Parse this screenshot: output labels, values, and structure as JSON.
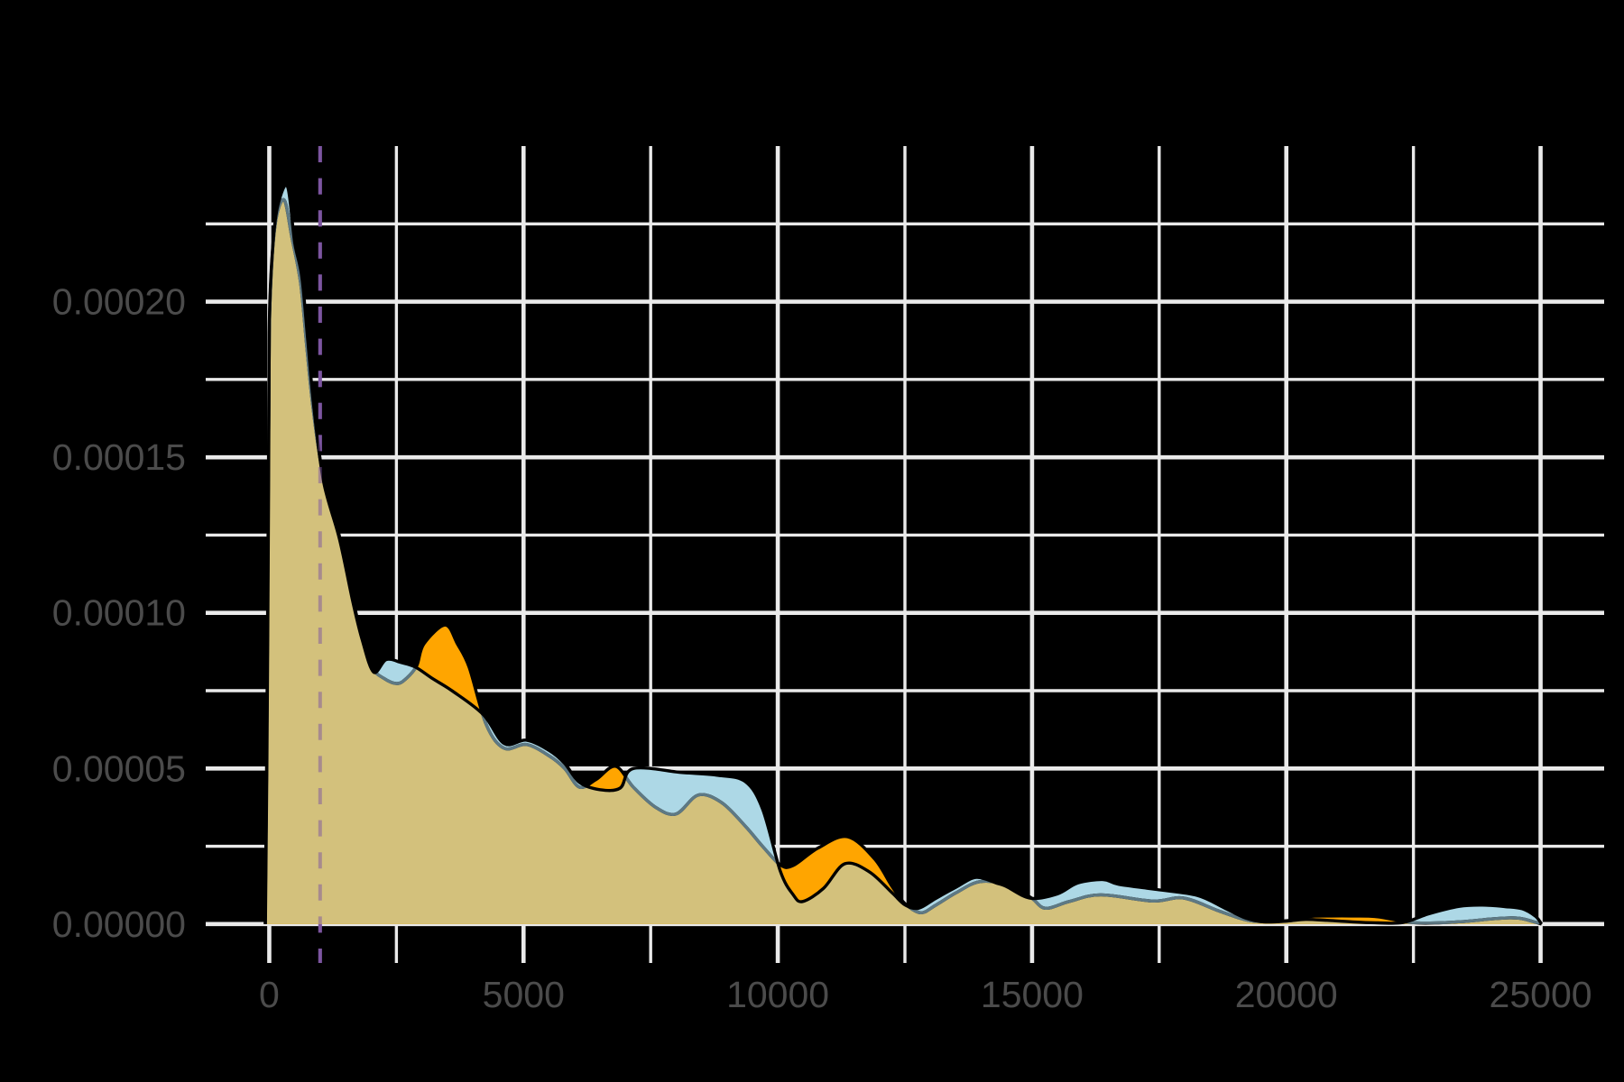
{
  "chart_data": {
    "type": "area",
    "subtype": "kde-density-overlay",
    "title": "",
    "xlabel": "",
    "ylabel": "",
    "grid": true,
    "legend_position": "none",
    "x_range": [
      -1250,
      26250
    ],
    "y_range_e4": [
      -0.125,
      2.5
    ],
    "x_axis": {
      "major_ticks": [
        {
          "v": 0,
          "label": "0"
        },
        {
          "v": 5000,
          "label": "5000"
        },
        {
          "v": 10000,
          "label": "10000"
        },
        {
          "v": 15000,
          "label": "15000"
        },
        {
          "v": 20000,
          "label": "20000"
        },
        {
          "v": 25000,
          "label": "25000"
        }
      ],
      "minor_ticks": [
        2500,
        7500,
        12500,
        17500,
        22500
      ]
    },
    "y_axis": {
      "major_ticks": [
        {
          "v": 0,
          "label": "0.00000"
        },
        {
          "v": 0.5,
          "label": "0.00005"
        },
        {
          "v": 1.0,
          "label": "0.00010"
        },
        {
          "v": 1.5,
          "label": "0.00015"
        },
        {
          "v": 2.0,
          "label": "0.00020"
        }
      ],
      "minor_ticks": [
        0.25,
        0.75,
        1.25,
        1.75,
        2.25
      ]
    },
    "density_unit": "1e-4",
    "series": [
      {
        "name": "orange-distribution",
        "fill": "#FFA500",
        "points": [
          [
            -80,
            0
          ],
          [
            -50,
            0.55
          ],
          [
            -20,
            1.35
          ],
          [
            0,
            1.9
          ],
          [
            60,
            2.15
          ],
          [
            150,
            2.28
          ],
          [
            300,
            2.325
          ],
          [
            440,
            2.21
          ],
          [
            617,
            2.06
          ],
          [
            740,
            1.85
          ],
          [
            860,
            1.66
          ],
          [
            1050,
            1.45
          ],
          [
            1360,
            1.26
          ],
          [
            1620,
            1.06
          ],
          [
            1800,
            0.94
          ],
          [
            2030,
            0.825
          ],
          [
            2250,
            0.79
          ],
          [
            2510,
            0.773
          ],
          [
            2700,
            0.79
          ],
          [
            2900,
            0.83
          ],
          [
            3040,
            0.9
          ],
          [
            3460,
            0.961
          ],
          [
            3700,
            0.9
          ],
          [
            3930,
            0.825
          ],
          [
            4270,
            0.64
          ],
          [
            4620,
            0.565
          ],
          [
            5060,
            0.577
          ],
          [
            5510,
            0.54
          ],
          [
            5810,
            0.5
          ],
          [
            6100,
            0.44
          ],
          [
            6430,
            0.465
          ],
          [
            6810,
            0.507
          ],
          [
            7160,
            0.44
          ],
          [
            7600,
            0.375
          ],
          [
            8000,
            0.354
          ],
          [
            8440,
            0.415
          ],
          [
            8900,
            0.39
          ],
          [
            9370,
            0.313
          ],
          [
            9700,
            0.25
          ],
          [
            10050,
            0.19
          ],
          [
            10300,
            0.188
          ],
          [
            10800,
            0.245
          ],
          [
            11370,
            0.281
          ],
          [
            11900,
            0.21
          ],
          [
            12250,
            0.12
          ],
          [
            12500,
            0.066
          ],
          [
            12810,
            0.0365
          ],
          [
            13100,
            0.06
          ],
          [
            13500,
            0.1
          ],
          [
            13960,
            0.136
          ],
          [
            14490,
            0.127
          ],
          [
            14970,
            0.086
          ],
          [
            15260,
            0.051
          ],
          [
            15730,
            0.0725
          ],
          [
            16350,
            0.094
          ],
          [
            17375,
            0.074
          ],
          [
            17975,
            0.084
          ],
          [
            18660,
            0.043
          ],
          [
            19190,
            0.014
          ],
          [
            19550,
            0.008
          ],
          [
            20020,
            0.011
          ],
          [
            20440,
            0.024
          ],
          [
            20800,
            0.026
          ],
          [
            21320,
            0.026
          ],
          [
            21800,
            0.0234
          ],
          [
            22440,
            0.005
          ],
          [
            23000,
            0.004
          ],
          [
            23510,
            0.0087
          ],
          [
            24000,
            0.016
          ],
          [
            24390,
            0.0203
          ],
          [
            24640,
            0.0174
          ],
          [
            24900,
            0.006
          ],
          [
            25020,
            0
          ]
        ]
      },
      {
        "name": "blue-distribution",
        "fill": "#ADD8E6",
        "points": [
          [
            -75,
            0
          ],
          [
            -45,
            0.55
          ],
          [
            -15,
            1.35
          ],
          [
            0,
            1.93
          ],
          [
            70,
            2.18
          ],
          [
            170,
            2.31
          ],
          [
            360,
            2.37
          ],
          [
            500,
            2.19
          ],
          [
            640,
            2.08
          ],
          [
            760,
            1.87
          ],
          [
            880,
            1.655
          ],
          [
            1070,
            1.42
          ],
          [
            1380,
            1.238
          ],
          [
            1640,
            1.038
          ],
          [
            1820,
            0.918
          ],
          [
            2050,
            0.81
          ],
          [
            2300,
            0.85
          ],
          [
            2600,
            0.84
          ],
          [
            2870,
            0.826
          ],
          [
            3200,
            0.79
          ],
          [
            3610,
            0.748
          ],
          [
            4210,
            0.673
          ],
          [
            4620,
            0.58
          ],
          [
            5060,
            0.591
          ],
          [
            5510,
            0.557
          ],
          [
            5810,
            0.516
          ],
          [
            6100,
            0.455
          ],
          [
            6500,
            0.432
          ],
          [
            6900,
            0.437
          ],
          [
            7160,
            0.5
          ],
          [
            8120,
            0.487
          ],
          [
            8830,
            0.478
          ],
          [
            9360,
            0.458
          ],
          [
            9700,
            0.37
          ],
          [
            10050,
            0.17
          ],
          [
            10300,
            0.095
          ],
          [
            10490,
            0.0725
          ],
          [
            10900,
            0.115
          ],
          [
            11320,
            0.194
          ],
          [
            11800,
            0.168
          ],
          [
            12250,
            0.1
          ],
          [
            12500,
            0.062
          ],
          [
            12770,
            0.051
          ],
          [
            13100,
            0.082
          ],
          [
            13500,
            0.118
          ],
          [
            13900,
            0.15
          ],
          [
            14310,
            0.131
          ],
          [
            14490,
            0.121
          ],
          [
            14970,
            0.083
          ],
          [
            15500,
            0.097
          ],
          [
            15900,
            0.132
          ],
          [
            16400,
            0.143
          ],
          [
            16700,
            0.128
          ],
          [
            17450,
            0.111
          ],
          [
            18250,
            0.092
          ],
          [
            18780,
            0.052
          ],
          [
            19190,
            0.02
          ],
          [
            19550,
            0.007
          ],
          [
            20020,
            0.0097
          ],
          [
            20380,
            0.015
          ],
          [
            20800,
            0.012
          ],
          [
            21300,
            0.007
          ],
          [
            21800,
            0.004
          ],
          [
            22300,
            0.005
          ],
          [
            22800,
            0.033
          ],
          [
            23400,
            0.057
          ],
          [
            23860,
            0.061
          ],
          [
            24300,
            0.056
          ],
          [
            24640,
            0.049
          ],
          [
            24900,
            0.025
          ],
          [
            25020,
            0
          ]
        ]
      }
    ],
    "overlap_fill": "#D3C17C",
    "reference_line": {
      "x": 1000,
      "style": "dashed",
      "color": "#7C55A0",
      "overlay_opacity": 0.5
    },
    "colors": {
      "background": "#000000",
      "gridline": "#EAEAEA",
      "tick_label": "#4B4B4B",
      "curve_stroke": "#000000",
      "occluded_stroke": "#5E7984"
    }
  }
}
